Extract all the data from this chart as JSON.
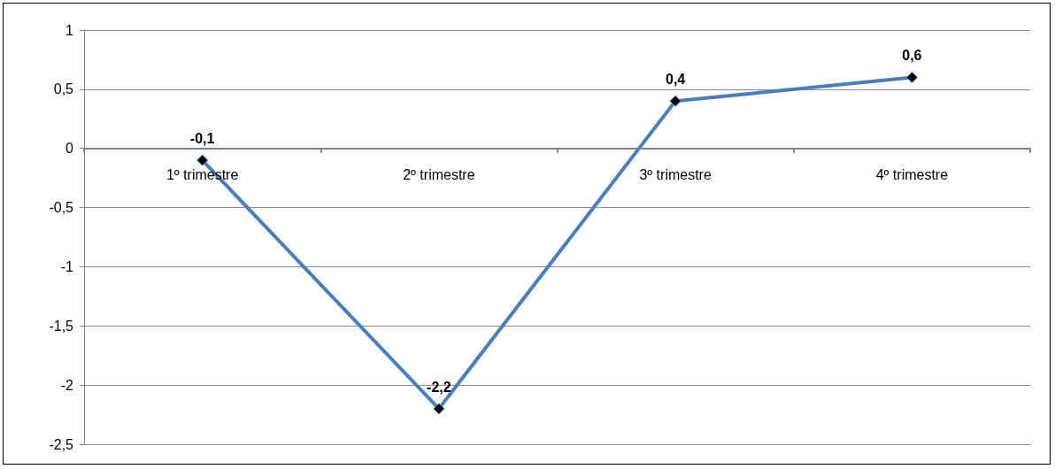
{
  "chart_data": {
    "type": "line",
    "categories": [
      "1º trimestre",
      "2º trimestre",
      "3º trimestre",
      "4º trimestre"
    ],
    "series": [
      {
        "color": "#4a7ebb",
        "values": [
          -0.1,
          -2.2,
          0.4,
          0.6
        ],
        "value_labels": [
          "-0,1",
          "-2,2",
          "0,4",
          "0,6"
        ]
      }
    ],
    "ylim": [
      -2.5,
      1
    ],
    "yticks": [
      {
        "value": -2.5,
        "label": "-2,5"
      },
      {
        "value": -2,
        "label": "-2"
      },
      {
        "value": -1.5,
        "label": "-1,5"
      },
      {
        "value": -1,
        "label": "-1"
      },
      {
        "value": -0.5,
        "label": "-0,5"
      },
      {
        "value": 0,
        "label": "0"
      },
      {
        "value": 0.5,
        "label": "0,5"
      },
      {
        "value": 1,
        "label": "1"
      }
    ],
    "grid": "y",
    "marker": "diamond",
    "line_style": "solid"
  }
}
